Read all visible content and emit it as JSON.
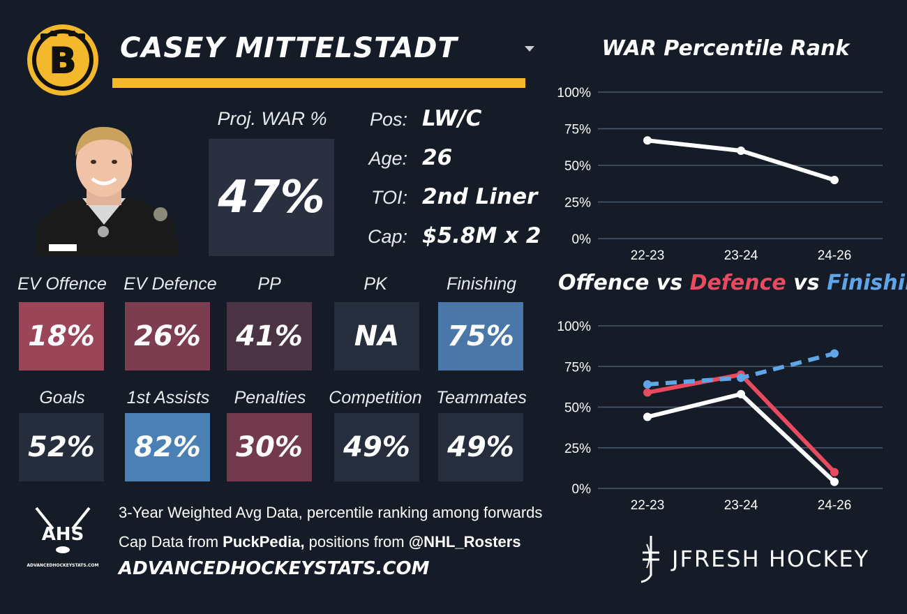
{
  "header": {
    "player_name": "CASEY MITTELSTADT"
  },
  "team": {
    "logo_letter": "B",
    "primary_color": "#f4b82c"
  },
  "projection": {
    "label": "Proj. WAR %",
    "value": "47%"
  },
  "bio": [
    {
      "label": "Pos:",
      "value": "LW/C"
    },
    {
      "label": "Age:",
      "value": "26"
    },
    {
      "label": "TOI:",
      "value": "2nd Liner"
    },
    {
      "label": "Cap:",
      "value": "$5.8M x 2"
    }
  ],
  "tiles_row1": [
    {
      "label": "EV Offence",
      "value": "18%",
      "color": "#9a4558"
    },
    {
      "label": "EV Defence",
      "value": "26%",
      "color": "#7c3d50"
    },
    {
      "label": "PP",
      "value": "41%",
      "color": "#4a3444"
    },
    {
      "label": "PK",
      "value": "NA",
      "color": "#262d3c"
    },
    {
      "label": "Finishing",
      "value": "75%",
      "color": "#4a77a7"
    }
  ],
  "tiles_row2": [
    {
      "label": "Goals",
      "value": "52%",
      "color": "#252d3c"
    },
    {
      "label": "1st Assists",
      "value": "82%",
      "color": "#4b80b5"
    },
    {
      "label": "Penalties",
      "value": "30%",
      "color": "#733a4e"
    },
    {
      "label": "Competition",
      "value": "49%",
      "color": "#262d3c"
    },
    {
      "label": "Teammates",
      "value": "49%",
      "color": "#262d3c"
    }
  ],
  "footer": {
    "ahs_text": "AHS",
    "ahs_subtext": "ADVANCEDHOCKEYSTATS.COM",
    "line1": "3-Year Weighted Avg Data, percentile ranking among forwards",
    "line2_pre": "Cap Data from ",
    "line2_source": "PuckPedia,",
    "line2_mid": " positions from ",
    "line2_handle": "@NHL_Rosters",
    "site_url": "ADVANCEDHOCKEYSTATS.COM",
    "brand": "JFRESH HOCKEY"
  },
  "colors": {
    "background": "#161c27",
    "white_series": "#ffffff",
    "defence_series": "#e84a5f",
    "finishing_series": "#5fa6e8",
    "grid": "#4a5a6e"
  },
  "chart_data": [
    {
      "type": "line",
      "title": "WAR Percentile Rank",
      "categories": [
        "22-23",
        "23-24",
        "24-26"
      ],
      "yticks": [
        "100%",
        "75%",
        "50%",
        "25%",
        "0%"
      ],
      "ylim": [
        0,
        100
      ],
      "grid": true,
      "series": [
        {
          "values": [
            67,
            60,
            40
          ],
          "color": "#ffffff",
          "style": "solid"
        }
      ]
    },
    {
      "type": "line",
      "title_parts": [
        {
          "text": "Offence",
          "color": "#ffffff"
        },
        {
          "text": " vs ",
          "color": "#ffffff"
        },
        {
          "text": "Defence",
          "color": "#e84a5f"
        },
        {
          "text": " vs ",
          "color": "#ffffff"
        },
        {
          "text": "Finishing",
          "color": "#5fa6e8"
        }
      ],
      "categories": [
        "22-23",
        "23-24",
        "24-26"
      ],
      "yticks": [
        "100%",
        "75%",
        "50%",
        "25%",
        "0%"
      ],
      "ylim": [
        0,
        100
      ],
      "grid": true,
      "series": [
        {
          "name": "Offence",
          "values": [
            44,
            58,
            4
          ],
          "color": "#ffffff",
          "style": "solid"
        },
        {
          "name": "Defence",
          "values": [
            59,
            70,
            10
          ],
          "color": "#e84a5f",
          "style": "solid"
        },
        {
          "name": "Finishing",
          "values": [
            64,
            68,
            83
          ],
          "color": "#5fa6e8",
          "style": "dashed"
        }
      ]
    }
  ]
}
